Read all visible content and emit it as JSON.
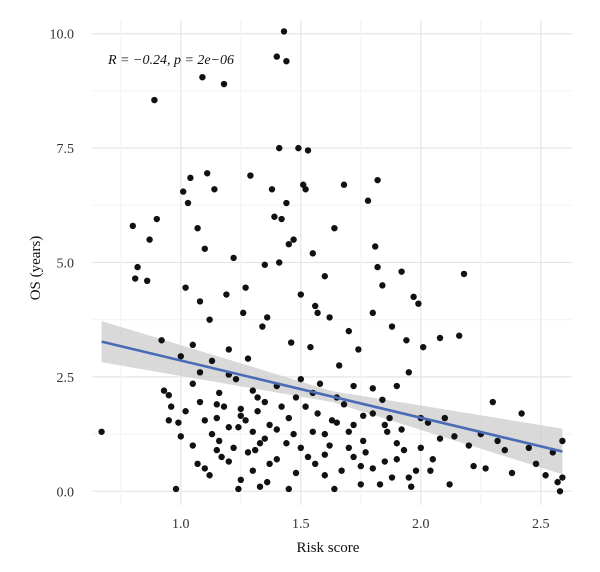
{
  "chart_data": {
    "type": "scatter",
    "title": "",
    "xlabel": "Risk score",
    "ylabel": "OS (years)",
    "xlim": [
      0.63,
      2.63
    ],
    "ylim": [
      -0.3,
      10.3
    ],
    "x_ticks": [
      1.0,
      1.5,
      2.0,
      2.5
    ],
    "x_tick_labels": [
      "1.0",
      "1.5",
      "2.0",
      "2.5"
    ],
    "y_ticks": [
      0.0,
      2.5,
      5.0,
      7.5,
      10.0
    ],
    "y_tick_labels": [
      "0.0",
      "2.5",
      "5.0",
      "7.5",
      "10.0"
    ],
    "grid": true,
    "annotation": "R = −0.24, p = 2e−06",
    "point_color": "#111111",
    "regression": {
      "x": [
        0.67,
        2.59
      ],
      "y": [
        3.27,
        0.87
      ],
      "color": "#4a6bb5",
      "band_color": "#cccccc",
      "ci_upper": [
        3.72,
        1.37
      ],
      "ci_lower": [
        2.82,
        0.37
      ]
    },
    "points": [
      [
        0.67,
        1.3
      ],
      [
        0.8,
        5.8
      ],
      [
        0.82,
        4.9
      ],
      [
        0.81,
        4.65
      ],
      [
        0.86,
        4.6
      ],
      [
        0.87,
        5.5
      ],
      [
        0.89,
        8.55
      ],
      [
        0.9,
        5.95
      ],
      [
        0.92,
        3.3
      ],
      [
        0.93,
        2.2
      ],
      [
        0.95,
        1.55
      ],
      [
        0.96,
        1.85
      ],
      [
        0.98,
        0.05
      ],
      [
        0.99,
        1.5
      ],
      [
        1.0,
        2.95
      ],
      [
        1.01,
        6.55
      ],
      [
        1.02,
        4.45
      ],
      [
        1.03,
        6.3
      ],
      [
        1.04,
        6.85
      ],
      [
        1.05,
        3.2
      ],
      [
        1.07,
        5.75
      ],
      [
        1.08,
        4.15
      ],
      [
        1.08,
        2.6
      ],
      [
        1.09,
        9.05
      ],
      [
        1.1,
        5.3
      ],
      [
        1.11,
        6.95
      ],
      [
        1.12,
        3.75
      ],
      [
        1.13,
        2.85
      ],
      [
        1.14,
        6.6
      ],
      [
        1.15,
        1.6
      ],
      [
        1.16,
        2.15
      ],
      [
        1.17,
        0.75
      ],
      [
        1.18,
        8.9
      ],
      [
        1.19,
        4.3
      ],
      [
        1.2,
        3.1
      ],
      [
        1.22,
        5.1
      ],
      [
        1.23,
        2.45
      ],
      [
        1.24,
        0.05
      ],
      [
        1.25,
        1.8
      ],
      [
        1.26,
        3.9
      ],
      [
        1.27,
        4.45
      ],
      [
        1.28,
        2.9
      ],
      [
        1.29,
        6.9
      ],
      [
        1.3,
        1.3
      ],
      [
        1.31,
        0.9
      ],
      [
        1.32,
        2.05
      ],
      [
        1.33,
        0.1
      ],
      [
        1.34,
        3.6
      ],
      [
        1.35,
        4.95
      ],
      [
        1.36,
        3.8
      ],
      [
        1.37,
        1.45
      ],
      [
        1.38,
        6.6
      ],
      [
        1.39,
        6.0
      ],
      [
        1.4,
        9.5
      ],
      [
        1.41,
        5.0
      ],
      [
        1.41,
        7.5
      ],
      [
        1.42,
        5.95
      ],
      [
        1.43,
        10.05
      ],
      [
        1.44,
        6.3
      ],
      [
        1.44,
        9.4
      ],
      [
        1.45,
        5.4
      ],
      [
        1.46,
        3.25
      ],
      [
        1.47,
        5.5
      ],
      [
        1.48,
        2.05
      ],
      [
        1.49,
        7.5
      ],
      [
        1.5,
        4.3
      ],
      [
        1.51,
        6.7
      ],
      [
        1.52,
        6.6
      ],
      [
        1.53,
        7.45
      ],
      [
        1.54,
        3.15
      ],
      [
        1.55,
        5.2
      ],
      [
        1.56,
        4.05
      ],
      [
        1.57,
        3.9
      ],
      [
        1.58,
        2.35
      ],
      [
        1.6,
        4.7
      ],
      [
        1.62,
        3.8
      ],
      [
        1.63,
        1.55
      ],
      [
        1.64,
        5.75
      ],
      [
        1.66,
        2.75
      ],
      [
        1.68,
        6.7
      ],
      [
        1.7,
        3.5
      ],
      [
        1.72,
        2.3
      ],
      [
        1.74,
        3.1
      ],
      [
        1.76,
        1.65
      ],
      [
        1.78,
        6.35
      ],
      [
        1.8,
        3.9
      ],
      [
        1.81,
        5.35
      ],
      [
        1.82,
        6.8
      ],
      [
        1.82,
        4.9
      ],
      [
        1.84,
        4.5
      ],
      [
        1.86,
        1.3
      ],
      [
        1.88,
        3.6
      ],
      [
        1.9,
        2.3
      ],
      [
        1.92,
        4.8
      ],
      [
        1.94,
        3.3
      ],
      [
        1.95,
        2.6
      ],
      [
        1.97,
        4.25
      ],
      [
        1.99,
        4.1
      ],
      [
        2.01,
        3.15
      ],
      [
        2.03,
        1.5
      ],
      [
        2.05,
        0.7
      ],
      [
        2.08,
        3.35
      ],
      [
        2.1,
        1.6
      ],
      [
        2.12,
        0.15
      ],
      [
        2.14,
        1.2
      ],
      [
        2.16,
        3.4
      ],
      [
        2.18,
        4.75
      ],
      [
        2.2,
        1.0
      ],
      [
        2.22,
        0.55
      ],
      [
        2.25,
        1.25
      ],
      [
        2.27,
        0.5
      ],
      [
        2.3,
        1.95
      ],
      [
        2.32,
        1.1
      ],
      [
        2.35,
        0.9
      ],
      [
        2.38,
        0.4
      ],
      [
        2.42,
        1.7
      ],
      [
        2.45,
        0.95
      ],
      [
        2.48,
        0.6
      ],
      [
        2.52,
        0.35
      ],
      [
        2.55,
        0.85
      ],
      [
        2.57,
        0.2
      ],
      [
        2.58,
        0.0
      ],
      [
        2.59,
        1.1
      ],
      [
        2.59,
        0.3
      ],
      [
        1.08,
        1.95
      ],
      [
        1.12,
        0.35
      ],
      [
        1.16,
        1.1
      ],
      [
        1.2,
        0.65
      ],
      [
        1.24,
        1.4
      ],
      [
        1.28,
        0.85
      ],
      [
        1.32,
        1.75
      ],
      [
        1.36,
        0.2
      ],
      [
        1.4,
        2.3
      ],
      [
        1.44,
        1.05
      ],
      [
        1.48,
        0.4
      ],
      [
        1.52,
        1.85
      ],
      [
        1.56,
        0.6
      ],
      [
        1.6,
        1.25
      ],
      [
        1.64,
        0.05
      ],
      [
        1.68,
        1.9
      ],
      [
        1.72,
        0.75
      ],
      [
        1.76,
        1.1
      ],
      [
        1.8,
        0.5
      ],
      [
        1.84,
        2.0
      ],
      [
        1.88,
        0.3
      ],
      [
        1.92,
        1.35
      ],
      [
        1.96,
        0.1
      ],
      [
        2.0,
        0.95
      ],
      [
        2.04,
        0.45
      ],
      [
        2.08,
        1.15
      ],
      [
        1.05,
        1.0
      ],
      [
        1.1,
        0.5
      ],
      [
        1.15,
        1.9
      ],
      [
        1.2,
        1.4
      ],
      [
        1.25,
        0.25
      ],
      [
        1.3,
        2.2
      ],
      [
        1.35,
        1.15
      ],
      [
        1.4,
        0.7
      ],
      [
        1.45,
        1.6
      ],
      [
        1.5,
        0.95
      ],
      [
        1.55,
        2.15
      ],
      [
        1.6,
        0.35
      ],
      [
        1.65,
        1.5
      ],
      [
        1.7,
        0.95
      ],
      [
        1.75,
        0.15
      ],
      [
        1.8,
        1.7
      ],
      [
        1.85,
        0.65
      ],
      [
        1.9,
        1.05
      ],
      [
        1.95,
        0.3
      ],
      [
        2.0,
        1.6
      ],
      [
        0.95,
        2.1
      ],
      [
        1.0,
        1.2
      ],
      [
        1.05,
        2.35
      ],
      [
        1.1,
        1.55
      ],
      [
        1.15,
        0.9
      ],
      [
        1.2,
        2.55
      ],
      [
        1.25,
        1.65
      ],
      [
        1.3,
        0.45
      ],
      [
        1.35,
        1.95
      ],
      [
        1.4,
        1.35
      ],
      [
        1.45,
        0.05
      ],
      [
        1.5,
        2.45
      ],
      [
        1.55,
        1.3
      ],
      [
        1.6,
        0.8
      ],
      [
        1.65,
        2.05
      ],
      [
        1.7,
        1.3
      ],
      [
        1.75,
        0.55
      ],
      [
        1.8,
        2.25
      ],
      [
        1.85,
        1.45
      ],
      [
        1.9,
        0.7
      ],
      [
        1.02,
        1.75
      ],
      [
        1.07,
        0.6
      ],
      [
        1.13,
        1.25
      ],
      [
        1.18,
        1.85
      ],
      [
        1.22,
        0.95
      ],
      [
        1.27,
        1.55
      ],
      [
        1.33,
        1.05
      ],
      [
        1.37,
        0.6
      ],
      [
        1.42,
        1.85
      ],
      [
        1.47,
        1.25
      ],
      [
        1.53,
        0.75
      ],
      [
        1.57,
        1.7
      ],
      [
        1.62,
        1.0
      ],
      [
        1.67,
        0.45
      ],
      [
        1.72,
        1.45
      ],
      [
        1.77,
        0.85
      ],
      [
        1.83,
        0.15
      ],
      [
        1.87,
        1.6
      ],
      [
        1.93,
        0.9
      ],
      [
        1.98,
        0.45
      ]
    ]
  }
}
